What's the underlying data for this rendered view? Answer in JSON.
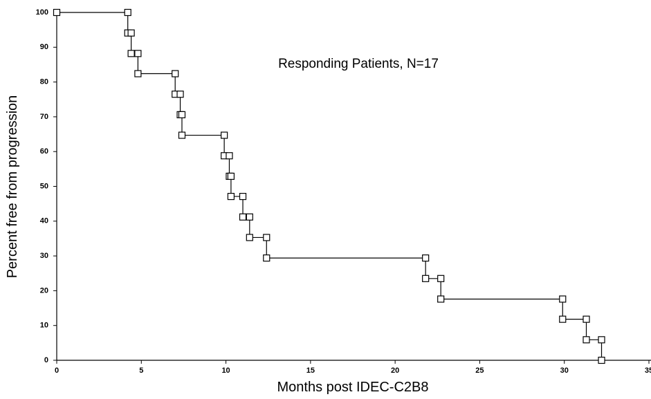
{
  "chart_data": {
    "type": "line",
    "annotation": "Responding Patients, N=17",
    "x_label": "Months post IDEC-C2B8",
    "y_label": "Percent free from progression",
    "x": [
      0,
      4.2,
      4.2,
      4.4,
      4.4,
      4.8,
      4.8,
      7.0,
      7.0,
      7.3,
      7.3,
      7.4,
      7.4,
      9.9,
      9.9,
      10.2,
      10.2,
      10.3,
      10.3,
      11.0,
      11.0,
      11.4,
      11.4,
      12.4,
      12.4,
      21.8,
      21.8,
      22.7,
      22.7,
      29.9,
      29.9,
      31.3,
      31.3,
      32.2,
      32.2
    ],
    "series": [
      {
        "color": "#000000",
        "marker": "square",
        "values": [
          100,
          100,
          94.1,
          94.1,
          88.2,
          88.2,
          82.4,
          82.4,
          76.5,
          76.5,
          70.6,
          70.6,
          64.7,
          64.7,
          58.8,
          58.8,
          52.9,
          52.9,
          47.1,
          47.1,
          41.2,
          41.2,
          35.3,
          35.3,
          29.4,
          29.4,
          23.5,
          23.5,
          17.6,
          17.6,
          11.8,
          11.8,
          5.9,
          5.9,
          0
        ]
      }
    ],
    "xlim": [
      0,
      35
    ],
    "xticks": [
      0,
      5,
      10,
      15,
      20,
      25,
      30,
      35
    ],
    "ylim": [
      0,
      100
    ],
    "yticks": [
      0,
      10,
      20,
      30,
      40,
      50,
      60,
      70,
      80,
      90,
      100
    ],
    "grid": false
  }
}
